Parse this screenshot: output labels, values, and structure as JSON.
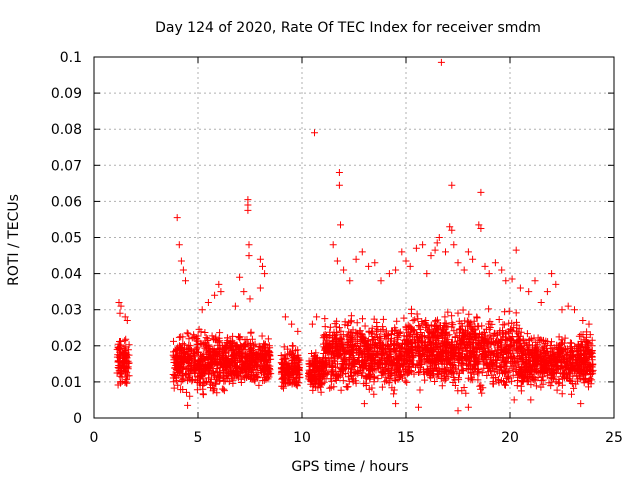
{
  "chart_data": {
    "type": "scatter",
    "title": "Day 124 of 2020, Rate Of TEC Index for receiver smdm",
    "xlabel": "GPS time / hours",
    "ylabel": "ROTI / TECUs",
    "xlim": [
      0,
      25
    ],
    "ylim": [
      0,
      0.1
    ],
    "x_ticks": [
      "0",
      "5",
      "10",
      "15",
      "20",
      "25"
    ],
    "y_ticks": [
      "0",
      "0.01",
      "0.02",
      "0.03",
      "0.04",
      "0.05",
      "0.06",
      "0.07",
      "0.08",
      "0.09",
      "0.1"
    ],
    "grid": true,
    "marker": "plus",
    "color": "#ff0000",
    "clusters": [
      {
        "x": [
          1.1,
          1.7
        ],
        "y": [
          0.007,
          0.024
        ]
      },
      {
        "x": [
          3.8,
          6.5
        ],
        "y": [
          0.005,
          0.026
        ]
      },
      {
        "x": [
          6.5,
          8.5
        ],
        "y": [
          0.006,
          0.025
        ]
      },
      {
        "x": [
          9.0,
          9.9
        ],
        "y": [
          0.006,
          0.022
        ]
      },
      {
        "x": [
          10.3,
          11.0
        ],
        "y": [
          0.005,
          0.02
        ]
      },
      {
        "x": [
          11.0,
          15.0
        ],
        "y": [
          0.005,
          0.03
        ]
      },
      {
        "x": [
          15.0,
          20.5
        ],
        "y": [
          0.005,
          0.032
        ]
      },
      {
        "x": [
          20.5,
          24.0
        ],
        "y": [
          0.006,
          0.025
        ]
      }
    ],
    "points": [
      [
        1.2,
        0.032
      ],
      [
        1.3,
        0.031
      ],
      [
        1.25,
        0.029
      ],
      [
        1.5,
        0.028
      ],
      [
        1.6,
        0.027
      ],
      [
        4.0,
        0.0555
      ],
      [
        4.1,
        0.048
      ],
      [
        4.3,
        0.041
      ],
      [
        4.2,
        0.0435
      ],
      [
        4.4,
        0.038
      ],
      [
        4.5,
        0.0035
      ],
      [
        4.6,
        0.006
      ],
      [
        5.5,
        0.032
      ],
      [
        5.8,
        0.034
      ],
      [
        6.1,
        0.035
      ],
      [
        6.0,
        0.037
      ],
      [
        5.2,
        0.03
      ],
      [
        6.8,
        0.031
      ],
      [
        7.0,
        0.039
      ],
      [
        7.2,
        0.035
      ],
      [
        7.4,
        0.0605
      ],
      [
        7.4,
        0.059
      ],
      [
        7.4,
        0.0575
      ],
      [
        7.45,
        0.048
      ],
      [
        7.45,
        0.045
      ],
      [
        7.5,
        0.033
      ],
      [
        8.0,
        0.044
      ],
      [
        8.1,
        0.042
      ],
      [
        8.2,
        0.04
      ],
      [
        8.0,
        0.036
      ],
      [
        9.2,
        0.028
      ],
      [
        9.5,
        0.026
      ],
      [
        9.8,
        0.024
      ],
      [
        10.6,
        0.079
      ],
      [
        10.7,
        0.028
      ],
      [
        10.5,
        0.026
      ],
      [
        11.5,
        0.048
      ],
      [
        11.7,
        0.0435
      ],
      [
        11.8,
        0.068
      ],
      [
        11.8,
        0.0645
      ],
      [
        11.85,
        0.0535
      ],
      [
        12.0,
        0.041
      ],
      [
        12.3,
        0.038
      ],
      [
        12.6,
        0.044
      ],
      [
        12.9,
        0.046
      ],
      [
        13.2,
        0.042
      ],
      [
        13.5,
        0.043
      ],
      [
        13.8,
        0.038
      ],
      [
        14.2,
        0.04
      ],
      [
        14.5,
        0.041
      ],
      [
        14.8,
        0.046
      ],
      [
        15.0,
        0.0435
      ],
      [
        15.2,
        0.042
      ],
      [
        15.5,
        0.047
      ],
      [
        15.8,
        0.048
      ],
      [
        16.0,
        0.04
      ],
      [
        16.2,
        0.045
      ],
      [
        16.4,
        0.0465
      ],
      [
        16.5,
        0.0485
      ],
      [
        16.6,
        0.05
      ],
      [
        16.7,
        0.0985
      ],
      [
        16.9,
        0.046
      ],
      [
        17.1,
        0.053
      ],
      [
        17.2,
        0.0645
      ],
      [
        17.2,
        0.052
      ],
      [
        17.3,
        0.048
      ],
      [
        17.5,
        0.043
      ],
      [
        17.8,
        0.041
      ],
      [
        18.0,
        0.046
      ],
      [
        18.2,
        0.044
      ],
      [
        18.5,
        0.0535
      ],
      [
        18.6,
        0.0525
      ],
      [
        18.6,
        0.0625
      ],
      [
        18.8,
        0.042
      ],
      [
        19.0,
        0.04
      ],
      [
        19.3,
        0.043
      ],
      [
        19.6,
        0.041
      ],
      [
        19.8,
        0.038
      ],
      [
        20.1,
        0.0385
      ],
      [
        20.3,
        0.0465
      ],
      [
        20.5,
        0.036
      ],
      [
        20.9,
        0.035
      ],
      [
        21.2,
        0.038
      ],
      [
        21.5,
        0.032
      ],
      [
        21.8,
        0.035
      ],
      [
        22.0,
        0.04
      ],
      [
        22.2,
        0.037
      ],
      [
        22.5,
        0.03
      ],
      [
        22.8,
        0.031
      ],
      [
        23.1,
        0.03
      ],
      [
        23.5,
        0.027
      ],
      [
        23.8,
        0.026
      ],
      [
        14.5,
        0.004
      ],
      [
        15.6,
        0.003
      ],
      [
        17.5,
        0.002
      ],
      [
        18.0,
        0.003
      ],
      [
        20.2,
        0.005
      ],
      [
        21.0,
        0.005
      ],
      [
        23.4,
        0.004
      ],
      [
        13.0,
        0.004
      ]
    ]
  }
}
